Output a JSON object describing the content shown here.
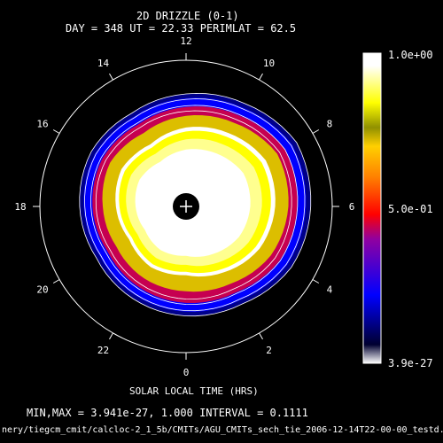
{
  "header": {
    "title": "2D DRIZZLE (0-1)",
    "subtitle": "DAY = 348   UT = 22.33   PERIMLAT =  62.5"
  },
  "chart_data": {
    "type": "heatmap",
    "projection": "polar",
    "xlabel": "SOLAR LOCAL TIME (HRS)",
    "hour_ticks": [
      {
        "hour": 12,
        "label": "12"
      },
      {
        "hour": 14,
        "label": "14"
      },
      {
        "hour": 16,
        "label": "16"
      },
      {
        "hour": 18,
        "label": "18"
      },
      {
        "hour": 20,
        "label": "20"
      },
      {
        "hour": 22,
        "label": "22"
      },
      {
        "hour": 0,
        "label": "0"
      },
      {
        "hour": 2,
        "label": "2"
      },
      {
        "hour": 4,
        "label": "4"
      },
      {
        "hour": 6,
        "label": "6"
      },
      {
        "hour": 8,
        "label": "8"
      },
      {
        "hour": 10,
        "label": "10"
      }
    ],
    "colorbar": {
      "max_label": "1.0e+00",
      "mid_label": "5.0e-01",
      "min_label": "3.9e-27"
    },
    "min": 3.941e-27,
    "max": 1.0,
    "contour_interval": 0.1111,
    "field_levels": [
      {
        "level": 0.0,
        "radius": [
          0.78,
          0.8,
          0.84,
          0.86,
          0.88,
          0.82,
          0.78,
          0.75,
          0.76,
          0.74,
          0.72,
          0.74
        ]
      },
      {
        "level": 0.15,
        "radius": [
          0.72,
          0.74,
          0.8,
          0.82,
          0.84,
          0.78,
          0.74,
          0.71,
          0.72,
          0.7,
          0.68,
          0.7
        ]
      },
      {
        "level": 0.4,
        "radius": [
          0.66,
          0.68,
          0.74,
          0.76,
          0.78,
          0.72,
          0.68,
          0.65,
          0.66,
          0.64,
          0.62,
          0.64
        ]
      },
      {
        "level": 0.7,
        "radius": [
          0.58,
          0.61,
          0.67,
          0.7,
          0.72,
          0.66,
          0.62,
          0.58,
          0.6,
          0.57,
          0.55,
          0.57
        ]
      },
      {
        "level": 1.0,
        "radius": [
          0.47,
          0.52,
          0.58,
          0.61,
          0.63,
          0.58,
          0.54,
          0.49,
          0.51,
          0.48,
          0.45,
          0.48
        ]
      }
    ]
  },
  "footer": {
    "stats": "MIN,MAX =  3.941e-27,     1.000 INTERVAL =     0.1111",
    "path": "nery/tiegcm_cmit/calcloc-2_1_5b/CMITs/AGU_CMITs_sech_tie_2006-12-14T22-00-00_testd.nc"
  }
}
